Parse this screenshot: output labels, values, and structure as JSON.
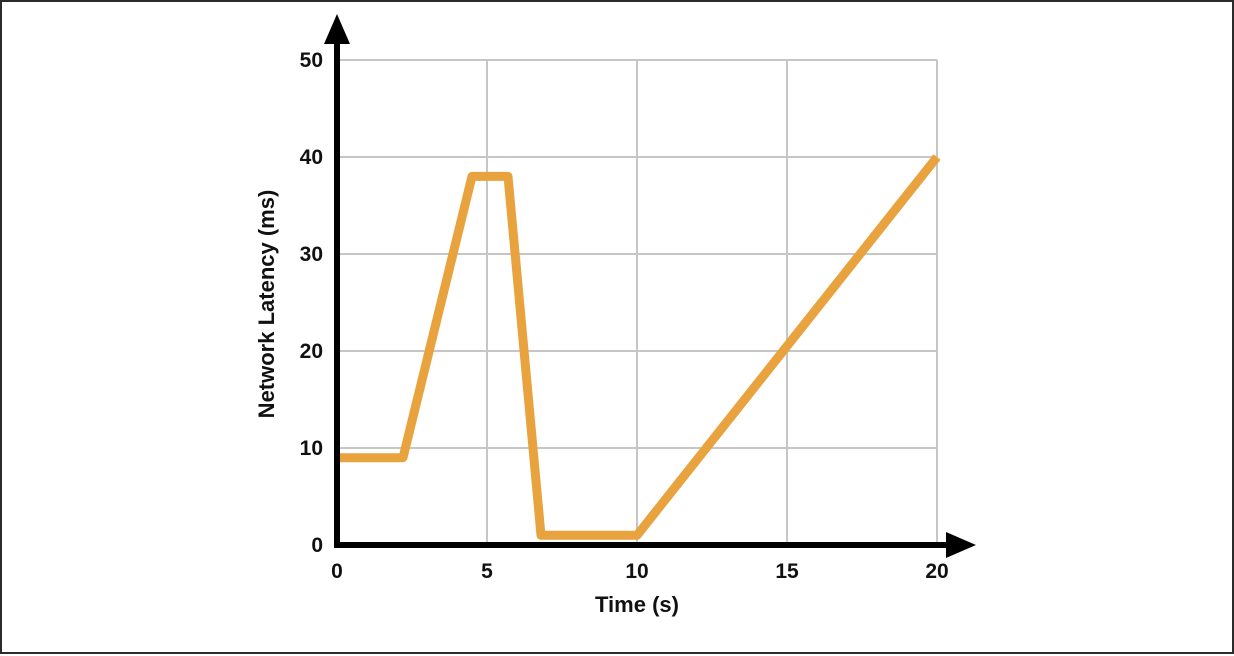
{
  "chart_data": {
    "type": "line",
    "title": "",
    "xlabel": "Time (s)",
    "ylabel": "Network Latency (ms)",
    "xlim": [
      0,
      20
    ],
    "ylim": [
      0,
      50
    ],
    "xticks": [
      0,
      5,
      10,
      15,
      20
    ],
    "yticks": [
      0,
      10,
      20,
      30,
      40,
      50
    ],
    "grid": true,
    "legend_position": "none",
    "series": [
      {
        "name": "Network Latency",
        "color": "#E8A23E",
        "points": [
          [
            0,
            9
          ],
          [
            2.2,
            9
          ],
          [
            4.5,
            38
          ],
          [
            5.7,
            38
          ],
          [
            6.8,
            1
          ],
          [
            10,
            1
          ],
          [
            20,
            40
          ]
        ]
      }
    ]
  },
  "colors": {
    "background": "#ffffff",
    "border": "#2b2b2b",
    "axis": "#000000",
    "grid": "#c6c6c6",
    "line": "#E8A23E",
    "text": "#111111"
  }
}
